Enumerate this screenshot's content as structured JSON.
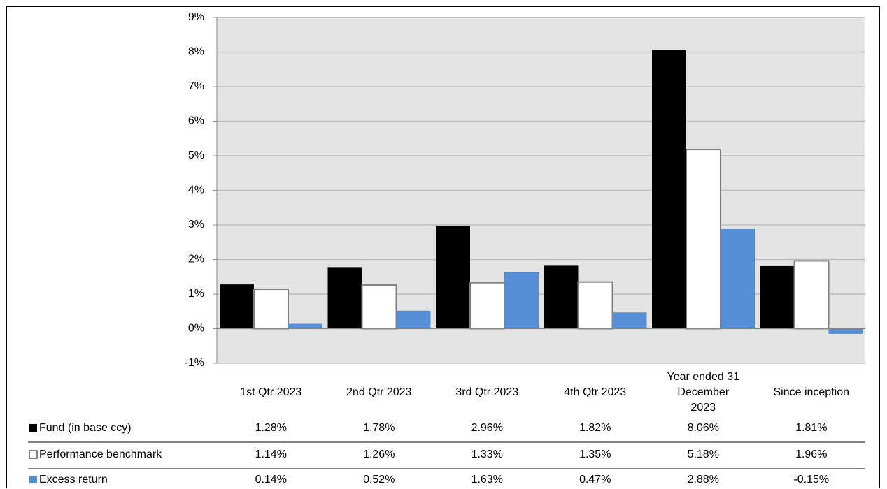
{
  "chart_data": {
    "type": "bar",
    "categories": [
      "1st Qtr 2023",
      "2nd Qtr 2023",
      "3rd Qtr 2023",
      "4th Qtr 2023",
      "Year ended 31 December 2023",
      "Since inception"
    ],
    "series": [
      {
        "name": "Fund (in base ccy)",
        "color": "#000000",
        "values": [
          1.28,
          1.78,
          2.96,
          1.82,
          8.06,
          1.81
        ],
        "value_labels": [
          "1.28%",
          "1.78%",
          "2.96%",
          "1.82%",
          "8.06%",
          "1.81%"
        ]
      },
      {
        "name": "Performance benchmark",
        "color": "#ffffff",
        "values": [
          1.14,
          1.26,
          1.33,
          1.35,
          5.18,
          1.96
        ],
        "value_labels": [
          "1.14%",
          "1.26%",
          "1.33%",
          "1.35%",
          "5.18%",
          "1.96%"
        ]
      },
      {
        "name": "Excess return",
        "color": "#558ed5",
        "values": [
          0.14,
          0.52,
          1.63,
          0.47,
          2.88,
          -0.15
        ],
        "value_labels": [
          "0.14%",
          "0.52%",
          "1.63%",
          "0.47%",
          "2.88%",
          "-0.15%"
        ]
      }
    ],
    "ylim": [
      -1,
      9
    ],
    "yticks": [
      {
        "value": -1,
        "label": "-1%"
      },
      {
        "value": 0,
        "label": "0%"
      },
      {
        "value": 1,
        "label": "1%"
      },
      {
        "value": 2,
        "label": "2%"
      },
      {
        "value": 3,
        "label": "3%"
      },
      {
        "value": 4,
        "label": "4%"
      },
      {
        "value": 5,
        "label": "5%"
      },
      {
        "value": 6,
        "label": "6%"
      },
      {
        "value": 7,
        "label": "7%"
      },
      {
        "value": 8,
        "label": "8%"
      },
      {
        "value": 9,
        "label": "9%"
      }
    ],
    "grid": true
  }
}
